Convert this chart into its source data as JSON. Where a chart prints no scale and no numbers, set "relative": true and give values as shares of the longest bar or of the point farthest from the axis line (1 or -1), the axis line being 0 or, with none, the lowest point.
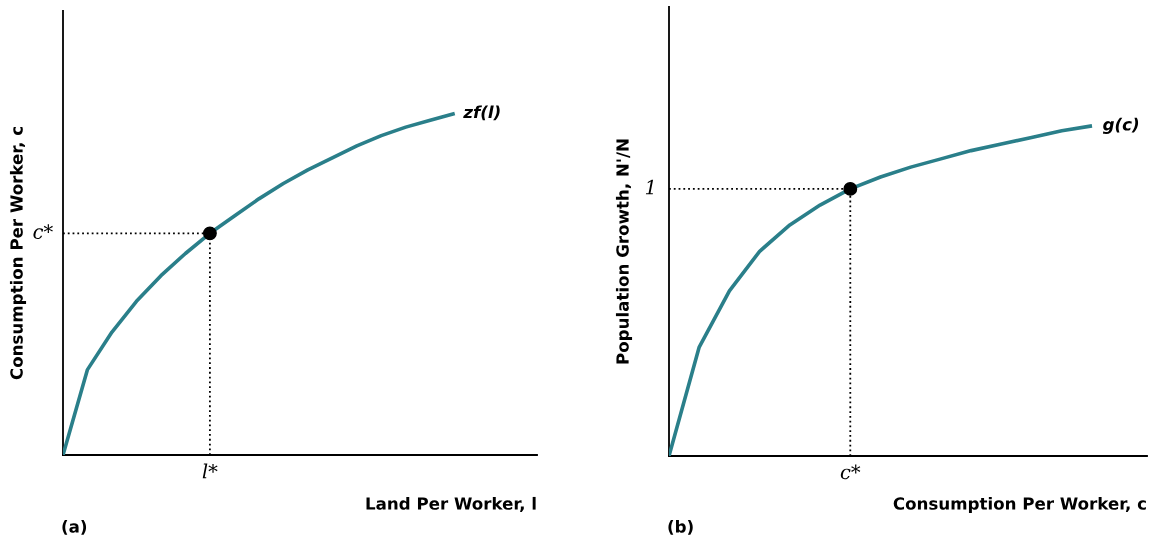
{
  "chart_data": [
    {
      "type": "line",
      "relative": true,
      "xlabel": "Land Per Worker, l",
      "ylabel": "Consumption Per Worker, c",
      "categories": [
        null,
        null,
        null,
        null,
        null,
        null,
        null,
        null,
        null,
        null,
        null,
        null,
        null,
        null,
        null,
        null,
        null
      ],
      "series": [
        {
          "name": "zf(l)",
          "color": "#2a7f8a",
          "values": [
            0,
            0.25,
            0.36,
            0.45,
            0.525,
            0.59,
            0.649,
            0.7,
            0.75,
            0.795,
            0.835,
            0.87,
            0.905,
            0.935,
            0.96,
            0.98,
            1.0
          ]
        }
      ],
      "ref_lines": [
        {
          "axis": "y",
          "value": 0.649,
          "label": "c*",
          "line_style": "dotted",
          "color": "#000000"
        }
      ],
      "annotations": [
        "l*",
        "(a)"
      ]
    },
    {
      "type": "line",
      "relative": true,
      "xlabel": "Consumption Per Worker, c",
      "ylabel": "Population Growth, N'/N",
      "categories": [
        null,
        null,
        null,
        null,
        null,
        null,
        null,
        null,
        null,
        null,
        null,
        null,
        null,
        null,
        null
      ],
      "series": [
        {
          "name": "g(c)",
          "color": "#2a7f8a",
          "values": [
            0,
            0.33,
            0.5,
            0.62,
            0.7,
            0.76,
            0.809,
            0.845,
            0.875,
            0.9,
            0.925,
            0.945,
            0.965,
            0.985,
            1.0
          ]
        }
      ],
      "ref_lines": [
        {
          "axis": "y",
          "value": 0.809,
          "label": "1",
          "line_style": "dotted",
          "color": "#000000"
        }
      ],
      "annotations": [
        "c*",
        "(b)"
      ]
    }
  ]
}
